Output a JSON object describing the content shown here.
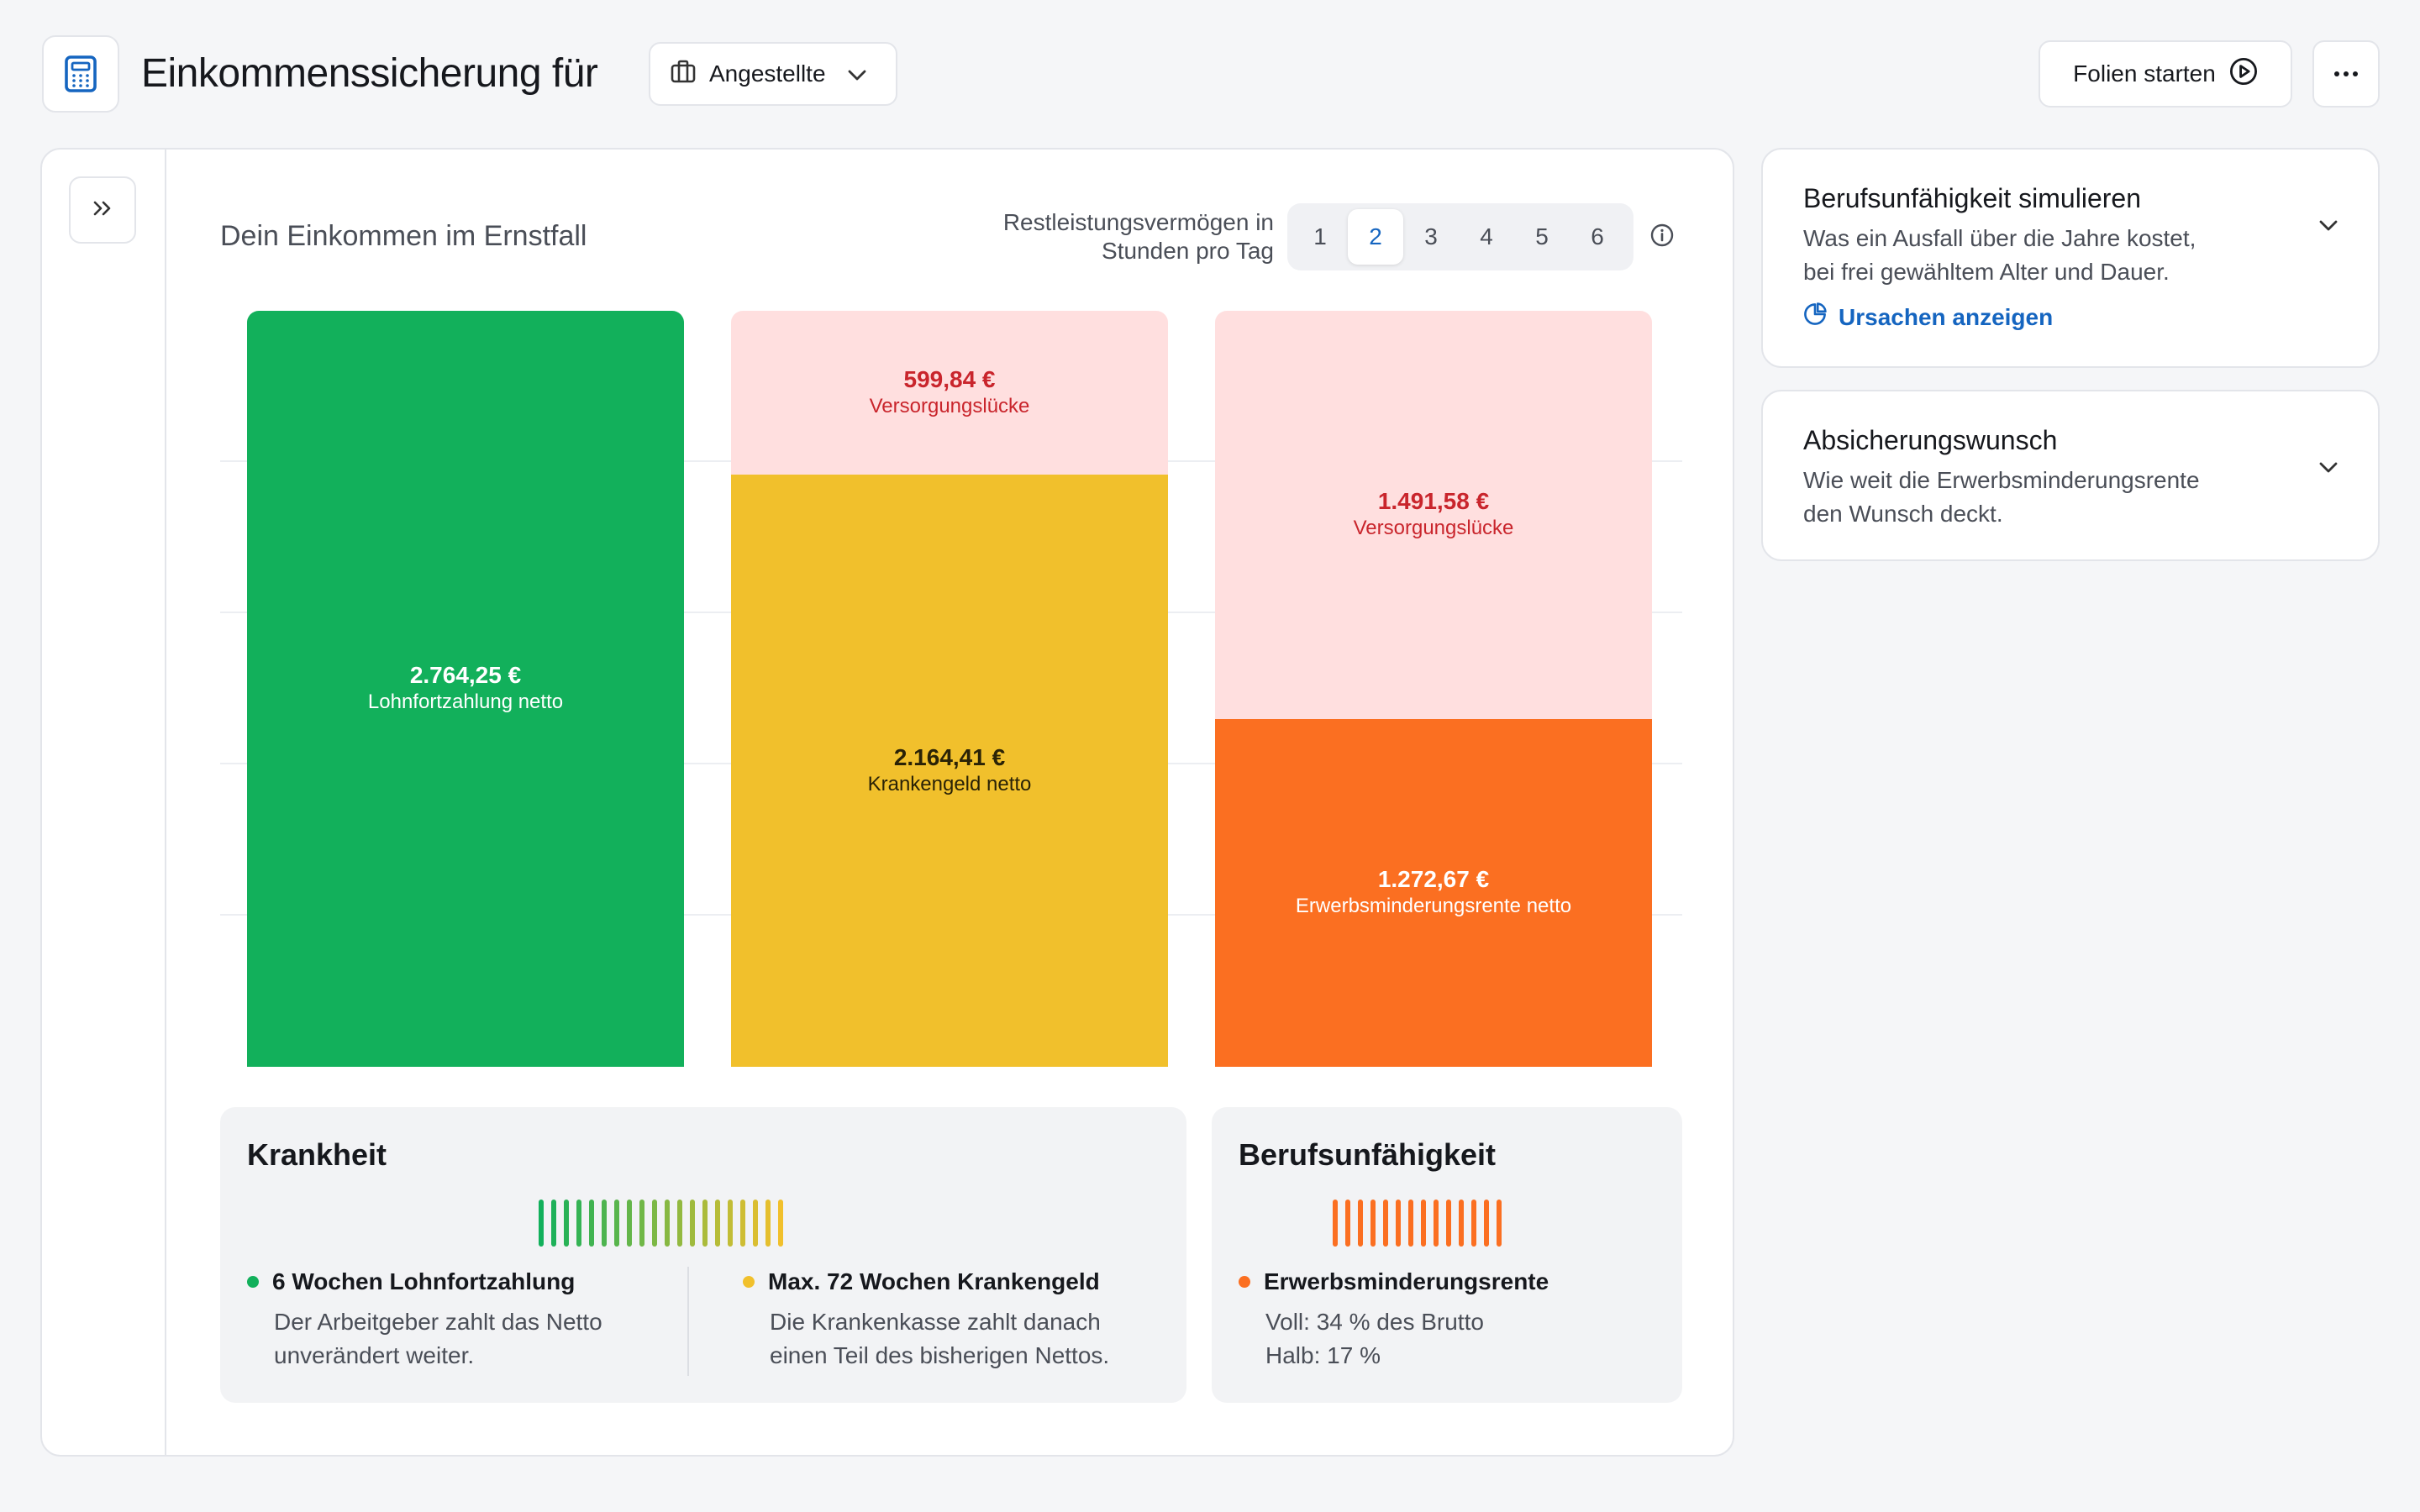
{
  "header": {
    "app_icon": "calculator-icon",
    "title": "Einkommenssicherung für",
    "role_select": {
      "icon": "briefcase-icon",
      "value": "Angestellte"
    },
    "slides_button": {
      "label": "Folien starten",
      "icon": "play-circle-icon"
    },
    "more_icon": "more-horizontal-icon"
  },
  "main": {
    "expand_icon": "chevrons-right-icon",
    "chart_title": "Dein Einkommen im Ernstfall",
    "hours": {
      "label_line1": "Restleistungsvermögen in",
      "label_line2": "Stunden pro Tag",
      "options": [
        "1",
        "2",
        "3",
        "4",
        "5",
        "6"
      ],
      "selected": "2",
      "info_icon": "info-icon"
    }
  },
  "chart_data": {
    "type": "bar",
    "stacked": true,
    "title": "Dein Einkommen im Ernstfall",
    "currency": "€",
    "ylim": [
      0,
      2764.25
    ],
    "grid": true,
    "bars": [
      {
        "segments": [
          {
            "value": 2764.25,
            "value_label": "2.764,25 €",
            "label": "Lohnfortzahlung netto",
            "color": "#12b05b"
          }
        ]
      },
      {
        "segments": [
          {
            "value": 2164.41,
            "value_label": "2.164,41 €",
            "label": "Krankengeld netto",
            "color": "#f1c02c"
          },
          {
            "value": 599.84,
            "value_label": "599,84 €",
            "label": "Versorgungslücke",
            "color": "#ffdfdf"
          }
        ]
      },
      {
        "segments": [
          {
            "value": 1272.67,
            "value_label": "1.272,67 €",
            "label": "Erwerbsminderungsrente netto",
            "color": "#fb6f21"
          },
          {
            "value": 1491.58,
            "value_label": "1.491,58 €",
            "label": "Versorgungslücke",
            "color": "#ffdfdf"
          }
        ]
      }
    ]
  },
  "cards": {
    "illness": {
      "title": "Krankheit",
      "tick_count": 20,
      "items": [
        {
          "title": "6 Wochen Lohnfortzahlung",
          "line1": "Der Arbeitgeber zahlt das Netto",
          "line2": "unverändert weiter.",
          "color": "#12b05b"
        },
        {
          "title": "Max. 72 Wochen Krankengeld",
          "line1": "Die Krankenkasse zahlt danach",
          "line2": "einen Teil des bisherigen Nettos.",
          "color": "#f1c02c"
        }
      ]
    },
    "disability": {
      "title": "Berufsunfähigkeit",
      "tick_count": 14,
      "item": {
        "title": "Erwerbsminderungsrente",
        "line1": "Voll: 34 % des Brutto",
        "line2": "Halb: 17 %",
        "color": "#fb6f21"
      }
    }
  },
  "panels": [
    {
      "title": "Berufsunfähigkeit simulieren",
      "line1": "Was ein Ausfall über die Jahre kostet,",
      "line2": "bei frei gewähltem Alter und Dauer.",
      "link": "Ursachen anzeigen",
      "link_icon": "pie-chart-icon",
      "chevron_icon": "chevron-down-icon"
    },
    {
      "title": "Absicherungswunsch",
      "line1": "Wie weit die Erwerbsminderungsrente",
      "line2": "den Wunsch deckt.",
      "chevron_icon": "chevron-down-icon"
    }
  ]
}
